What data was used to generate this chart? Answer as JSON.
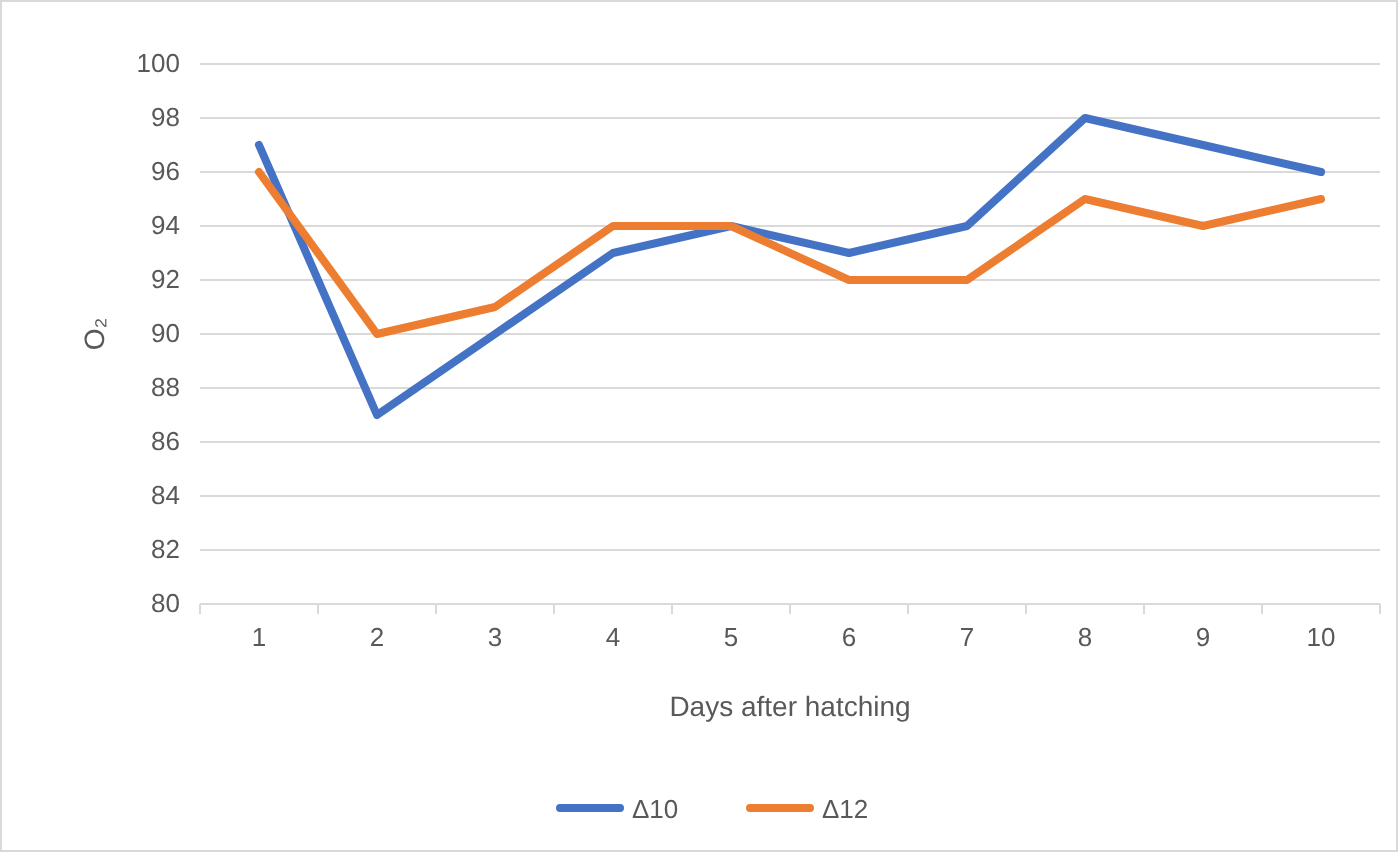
{
  "chart_data": {
    "type": "line",
    "xlabel": "Days after hatching",
    "ylabel": "O₂",
    "categories": [
      "1",
      "2",
      "3",
      "4",
      "5",
      "6",
      "7",
      "8",
      "9",
      "10"
    ],
    "series": [
      {
        "name": "Δ10",
        "color": "#4472c4",
        "values": [
          97,
          87,
          90,
          93,
          94,
          93,
          94,
          98,
          97,
          96
        ]
      },
      {
        "name": "Δ12",
        "color": "#ed7d31",
        "values": [
          96,
          90,
          91,
          94,
          94,
          92,
          92,
          95,
          94,
          95
        ]
      }
    ],
    "ylim": [
      80,
      100
    ],
    "yticks": [
      80,
      82,
      84,
      86,
      88,
      90,
      92,
      94,
      96,
      98,
      100
    ],
    "grid": "y",
    "legend": "bottom",
    "marker": "none",
    "line_style": "solid"
  }
}
